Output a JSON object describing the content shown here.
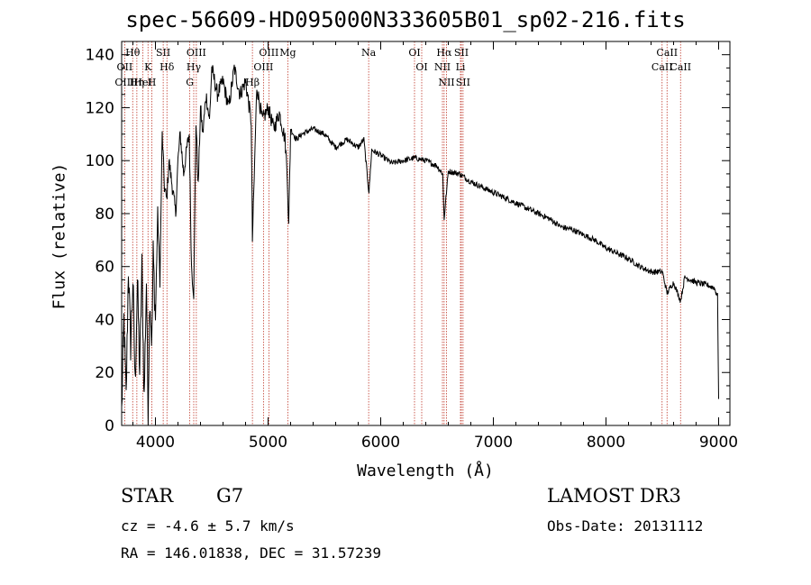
{
  "chart_data": {
    "type": "line",
    "title": "spec-56609-HD095000N333605B01_sp02-216.fits",
    "xlabel": "Wavelength (Å)",
    "ylabel": "Flux (relative)",
    "xlim": [
      3700,
      9100
    ],
    "ylim": [
      0,
      145
    ],
    "xticks": [
      4000,
      5000,
      6000,
      7000,
      8000,
      9000
    ],
    "yticks": [
      0,
      20,
      40,
      60,
      80,
      100,
      120,
      140
    ],
    "series": [
      {
        "name": "flux",
        "x": [
          3700,
          3720,
          3740,
          3760,
          3780,
          3800,
          3820,
          3840,
          3860,
          3880,
          3900,
          3920,
          3935,
          3950,
          3968,
          3980,
          4000,
          4020,
          4040,
          4060,
          4080,
          4100,
          4120,
          4150,
          4180,
          4200,
          4220,
          4250,
          4280,
          4300,
          4320,
          4340,
          4360,
          4380,
          4400,
          4420,
          4450,
          4480,
          4500,
          4550,
          4600,
          4650,
          4700,
          4750,
          4800,
          4850,
          4861,
          4900,
          4950,
          5000,
          5050,
          5100,
          5150,
          5170,
          5183,
          5200,
          5250,
          5300,
          5400,
          5500,
          5600,
          5700,
          5800,
          5850,
          5890,
          5896,
          5920,
          6000,
          6100,
          6200,
          6300,
          6400,
          6500,
          6550,
          6563,
          6600,
          6700,
          6800,
          6900,
          7000,
          7100,
          7200,
          7300,
          7400,
          7500,
          7600,
          7700,
          7800,
          7900,
          8000,
          8100,
          8200,
          8300,
          8400,
          8500,
          8542,
          8600,
          8662,
          8700,
          8800,
          8900,
          8960,
          8990,
          9000
        ],
        "values": [
          5,
          40,
          10,
          60,
          30,
          55,
          15,
          55,
          20,
          60,
          10,
          55,
          5,
          50,
          30,
          65,
          40,
          80,
          55,
          110,
          90,
          85,
          100,
          90,
          80,
          100,
          110,
          95,
          105,
          110,
          60,
          50,
          115,
          90,
          120,
          110,
          125,
          115,
          135,
          125,
          130,
          120,
          135,
          125,
          130,
          115,
          70,
          128,
          115,
          120,
          112,
          118,
          108,
          95,
          75,
          112,
          108,
          110,
          112,
          110,
          105,
          108,
          105,
          108,
          90,
          88,
          104,
          102,
          99,
          100,
          101,
          100,
          98,
          95,
          78,
          96,
          95,
          92,
          90,
          88,
          86,
          84,
          82,
          80,
          78,
          75,
          74,
          72,
          70,
          67,
          65,
          63,
          60,
          58,
          58,
          50,
          54,
          47,
          56,
          54,
          53,
          52,
          49,
          10
        ]
      }
    ],
    "lines": [
      {
        "name": "Hθ",
        "wavelength": 3798
      },
      {
        "name": "OII",
        "wavelength": 3727
      },
      {
        "name": "OIII",
        "wavelength": 3727
      },
      {
        "name": "K",
        "wavelength": 3934
      },
      {
        "name": "HeI",
        "wavelength": 3889
      },
      {
        "name": "Hη",
        "wavelength": 3835
      },
      {
        "name": "SII",
        "wavelength": 4069
      },
      {
        "name": "H",
        "wavelength": 3968
      },
      {
        "name": "Hδ",
        "wavelength": 4102
      },
      {
        "name": "OIII",
        "wavelength": 4363
      },
      {
        "name": "Hγ",
        "wavelength": 4340
      },
      {
        "name": "G",
        "wavelength": 4305
      },
      {
        "name": "OIII",
        "wavelength": 5007
      },
      {
        "name": "OIII",
        "wavelength": 4959
      },
      {
        "name": "Mg",
        "wavelength": 5175
      },
      {
        "name": "Hβ",
        "wavelength": 4861
      },
      {
        "name": "Na",
        "wavelength": 5893
      },
      {
        "name": "OI",
        "wavelength": 6300
      },
      {
        "name": "OI",
        "wavelength": 6364
      },
      {
        "name": "Hα",
        "wavelength": 6563
      },
      {
        "name": "NII",
        "wavelength": 6548
      },
      {
        "name": "NII",
        "wavelength": 6584
      },
      {
        "name": "SII",
        "wavelength": 6716
      },
      {
        "name": "Li",
        "wavelength": 6708
      },
      {
        "name": "SII",
        "wavelength": 6731
      },
      {
        "name": "CaII",
        "wavelength": 8542
      },
      {
        "name": "CaII",
        "wavelength": 8498
      },
      {
        "name": "CaII",
        "wavelength": 8662
      }
    ]
  },
  "info": {
    "class": "STAR",
    "subclass": "G7",
    "survey": "LAMOST DR3",
    "cz": "cz = -4.6 ± 5.7 km/s",
    "obs_date": "Obs-Date: 20131112",
    "coords": "RA = 146.01838, DEC =  31.57239"
  }
}
